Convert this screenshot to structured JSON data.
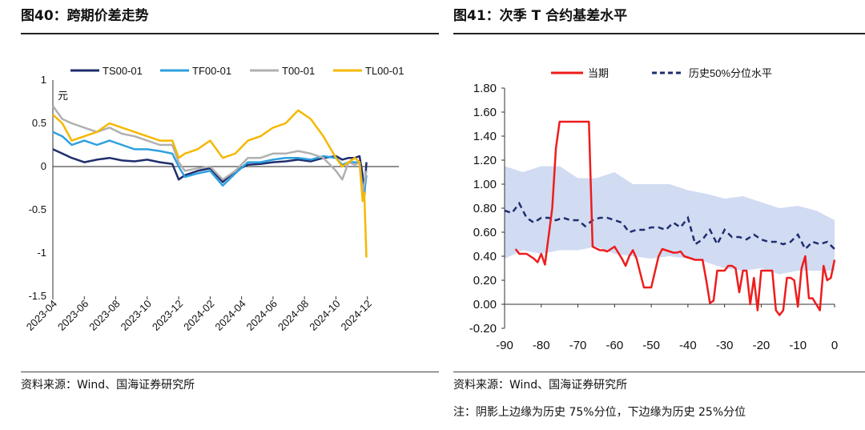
{
  "left": {
    "title": "图40：跨期价差走势",
    "source": "资料来源：Wind、国海证券研究所",
    "chart_data": {
      "type": "line",
      "unit_label": "元",
      "ylim": [
        -1.5,
        1
      ],
      "yticks": [
        "1",
        "0.5",
        "0",
        "-0.5",
        "-1",
        "-1.5"
      ],
      "ytick_values": [
        1,
        0.5,
        0,
        -0.5,
        -1,
        -1.5
      ],
      "xlabels": [
        "2023-04",
        "2023-06",
        "2023-08",
        "2023-10",
        "2023-12",
        "2024-02",
        "2024-04",
        "2024-06",
        "2024-08",
        "2024-10",
        "2024-12"
      ],
      "series": [
        {
          "name": "TS00-01",
          "color": "#1f2e6e",
          "x": [
            0,
            0.3,
            0.6,
            1,
            1.4,
            1.8,
            2.2,
            2.6,
            3,
            3.4,
            3.8,
            4,
            4.2,
            4.6,
            5,
            5.4,
            5.8,
            6.2,
            6.6,
            7,
            7.4,
            7.8,
            8.2,
            8.6,
            9,
            9.2,
            9.4,
            9.6,
            9.75,
            9.85,
            9.9,
            9.97
          ],
          "values": [
            0.2,
            0.15,
            0.1,
            0.05,
            0.08,
            0.1,
            0.07,
            0.06,
            0.08,
            0.05,
            0.03,
            -0.15,
            -0.1,
            -0.05,
            -0.02,
            -0.18,
            -0.05,
            0.02,
            0.03,
            0.05,
            0.06,
            0.08,
            0.06,
            0.1,
            0.12,
            0.08,
            0.1,
            0.1,
            0.12,
            -0.1,
            -0.35,
            0.05
          ]
        },
        {
          "name": "TF00-01",
          "color": "#2ea0e0",
          "x": [
            0,
            0.3,
            0.6,
            1,
            1.4,
            1.8,
            2.2,
            2.6,
            3,
            3.4,
            3.8,
            4,
            4.2,
            4.6,
            5,
            5.4,
            5.8,
            6.2,
            6.6,
            7,
            7.4,
            7.8,
            8.2,
            8.6,
            9,
            9.2,
            9.4,
            9.6,
            9.75,
            9.85,
            9.9,
            9.97
          ],
          "values": [
            0.4,
            0.35,
            0.25,
            0.3,
            0.25,
            0.3,
            0.25,
            0.2,
            0.2,
            0.18,
            0.15,
            0.0,
            -0.12,
            -0.08,
            -0.05,
            -0.22,
            -0.08,
            0.05,
            0.05,
            0.08,
            0.1,
            0.1,
            0.08,
            0.12,
            0.1,
            0.02,
            0.05,
            0.05,
            0.04,
            -0.25,
            -0.3,
            -0.1
          ]
        },
        {
          "name": "T00-01",
          "color": "#b0b0b0",
          "x": [
            0,
            0.3,
            0.6,
            1,
            1.4,
            1.8,
            2.2,
            2.6,
            3,
            3.4,
            3.8,
            4,
            4.2,
            4.6,
            5,
            5.4,
            5.8,
            6.2,
            6.6,
            7,
            7.4,
            7.8,
            8.2,
            8.6,
            9,
            9.2,
            9.4,
            9.6,
            9.75,
            9.85,
            9.9,
            9.97
          ],
          "values": [
            0.7,
            0.55,
            0.5,
            0.45,
            0.4,
            0.45,
            0.38,
            0.35,
            0.3,
            0.25,
            0.25,
            0.05,
            -0.05,
            -0.02,
            0.0,
            -0.15,
            -0.05,
            0.1,
            0.1,
            0.15,
            0.15,
            0.18,
            0.15,
            0.1,
            -0.05,
            -0.15,
            0.05,
            0.02,
            0.05,
            -0.3,
            -0.2,
            -0.05
          ]
        },
        {
          "name": "TL00-01",
          "color": "#f5b800",
          "x": [
            0,
            0.3,
            0.6,
            1,
            1.4,
            1.8,
            2.2,
            2.6,
            3,
            3.4,
            3.8,
            4,
            4.2,
            4.6,
            5,
            5.4,
            5.8,
            6.2,
            6.6,
            7,
            7.4,
            7.8,
            8.2,
            8.6,
            9,
            9.2,
            9.4,
            9.6,
            9.75,
            9.85,
            9.9,
            9.97
          ],
          "values": [
            0.6,
            0.5,
            0.3,
            0.35,
            0.4,
            0.5,
            0.45,
            0.4,
            0.35,
            0.3,
            0.3,
            0.1,
            0.15,
            0.2,
            0.3,
            0.1,
            0.15,
            0.3,
            0.35,
            0.45,
            0.5,
            0.65,
            0.55,
            0.35,
            0.1,
            0.0,
            0.05,
            0.1,
            0.05,
            -0.4,
            -0.3,
            -1.05
          ]
        }
      ]
    }
  },
  "right": {
    "title": "图41：次季 T 合约基差水平",
    "source": "资料来源：Wind、国海证券研究所",
    "note": "注：阴影上边缘为历史 75%分位，下边缘为历史 25%分位",
    "chart_data": {
      "type": "line",
      "ylim": [
        -0.2,
        1.8
      ],
      "yticks": [
        "1.80",
        "1.60",
        "1.40",
        "1.20",
        "1.00",
        "0.80",
        "0.60",
        "0.40",
        "0.20",
        "0.00",
        "-0.20"
      ],
      "ytick_values": [
        1.8,
        1.6,
        1.4,
        1.2,
        1.0,
        0.8,
        0.6,
        0.4,
        0.2,
        0.0,
        -0.2
      ],
      "xlim": [
        -90,
        0
      ],
      "xticks": [
        "-90",
        "-80",
        "-70",
        "-60",
        "-50",
        "-40",
        "-30",
        "-20",
        "-10",
        "0"
      ],
      "xtick_values": [
        -90,
        -80,
        -70,
        -60,
        -50,
        -40,
        -30,
        -20,
        -10,
        0
      ],
      "series": [
        {
          "name": "当期",
          "color": "#ee1c1c",
          "x": [
            -87,
            -86,
            -84,
            -82,
            -81,
            -80,
            -79,
            -77,
            -76,
            -75,
            -74,
            -73,
            -72,
            -70,
            -68,
            -67,
            -66,
            -64,
            -63,
            -62,
            -60,
            -59,
            -58,
            -57,
            -56,
            -55,
            -54,
            -52,
            -50,
            -48,
            -47,
            -46,
            -45,
            -44,
            -43,
            -42,
            -41,
            -38,
            -37,
            -36,
            -35,
            -34,
            -33,
            -32,
            -31,
            -30,
            -29,
            -28,
            -27,
            -26,
            -25,
            -24,
            -23,
            -22,
            -21,
            -20,
            -19,
            -18,
            -17,
            -16,
            -15,
            -14,
            -13,
            -12,
            -11,
            -10,
            -9,
            -8,
            -7,
            -6,
            -5,
            -4,
            -3,
            -2,
            -1,
            0
          ],
          "values": [
            0.46,
            0.42,
            0.42,
            0.38,
            0.35,
            0.42,
            0.33,
            0.8,
            1.3,
            1.52,
            1.52,
            1.52,
            1.52,
            1.52,
            1.52,
            1.52,
            0.48,
            0.45,
            0.45,
            0.44,
            0.48,
            0.43,
            0.38,
            0.32,
            0.4,
            0.45,
            0.38,
            0.14,
            0.14,
            0.4,
            0.46,
            0.45,
            0.44,
            0.43,
            0.43,
            0.44,
            0.4,
            0.37,
            0.37,
            0.37,
            0.2,
            0.01,
            0.03,
            0.28,
            0.28,
            0.28,
            0.32,
            0.32,
            0.3,
            0.1,
            0.28,
            0.28,
            0.0,
            0.22,
            -0.05,
            0.28,
            0.28,
            0.28,
            0.28,
            -0.05,
            -0.09,
            -0.05,
            0.22,
            0.22,
            0.2,
            -0.02,
            0.3,
            0.4,
            0.05,
            0.05,
            0.0,
            -0.05,
            0.32,
            0.2,
            0.22,
            0.37
          ]
        },
        {
          "name": "历史50%分位水平",
          "color": "#1f2e6e",
          "x": [
            -90,
            -88,
            -86,
            -84,
            -82,
            -80,
            -78,
            -76,
            -74,
            -72,
            -70,
            -68,
            -66,
            -64,
            -62,
            -60,
            -58,
            -56,
            -54,
            -52,
            -50,
            -48,
            -46,
            -44,
            -42,
            -40,
            -38,
            -36,
            -34,
            -32,
            -30,
            -28,
            -26,
            -24,
            -22,
            -20,
            -18,
            -16,
            -14,
            -12,
            -10,
            -8,
            -6,
            -4,
            -2,
            0
          ],
          "values": [
            0.78,
            0.76,
            0.84,
            0.72,
            0.68,
            0.72,
            0.72,
            0.7,
            0.72,
            0.7,
            0.7,
            0.65,
            0.7,
            0.72,
            0.72,
            0.7,
            0.68,
            0.6,
            0.62,
            0.62,
            0.64,
            0.64,
            0.62,
            0.68,
            0.64,
            0.72,
            0.5,
            0.54,
            0.62,
            0.5,
            0.62,
            0.56,
            0.56,
            0.54,
            0.58,
            0.54,
            0.52,
            0.52,
            0.5,
            0.52,
            0.58,
            0.46,
            0.52,
            0.5,
            0.52,
            0.46
          ]
        },
        {
          "name": "band",
          "color": "#c9d5f0",
          "x": [
            -90,
            -85,
            -80,
            -75,
            -70,
            -65,
            -60,
            -55,
            -50,
            -45,
            -40,
            -35,
            -30,
            -25,
            -20,
            -15,
            -10,
            -5,
            0
          ],
          "upper": [
            1.15,
            1.1,
            1.15,
            1.15,
            1.05,
            1.05,
            1.1,
            1.0,
            1.0,
            1.0,
            0.95,
            0.92,
            0.88,
            0.9,
            0.85,
            0.8,
            0.82,
            0.78,
            0.7
          ],
          "lower": [
            0.38,
            0.45,
            0.42,
            0.45,
            0.45,
            0.48,
            0.42,
            0.4,
            0.38,
            0.4,
            0.38,
            0.35,
            0.3,
            0.28,
            0.3,
            0.25,
            0.28,
            0.28,
            0.28
          ]
        }
      ]
    }
  }
}
